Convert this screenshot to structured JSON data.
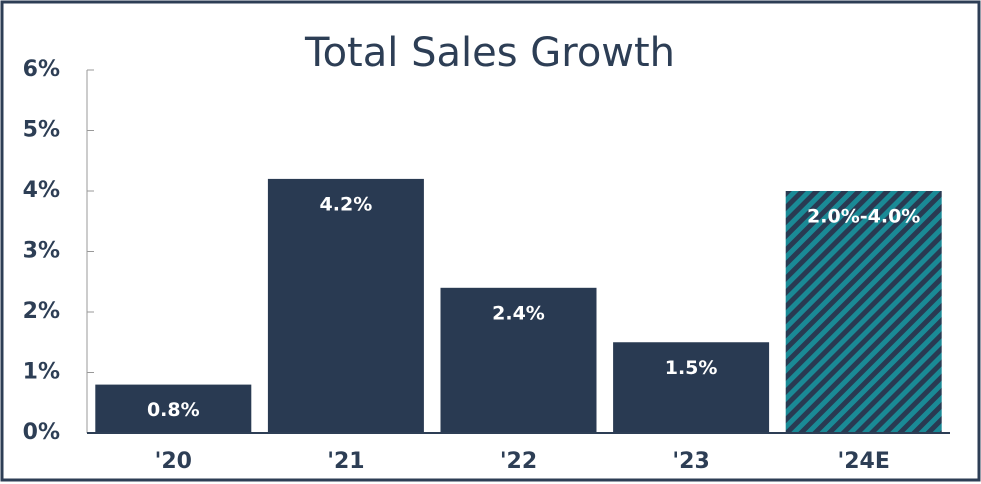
{
  "chart_data": {
    "type": "bar",
    "title": "Total Sales Growth",
    "categories": [
      "'20",
      "'21",
      "'22",
      "'23",
      "'24E"
    ],
    "values": [
      0.8,
      4.2,
      2.4,
      1.5,
      4.0
    ],
    "value_labels": [
      "0.8%",
      "4.2%",
      "2.4%",
      "1.5%",
      "2.0%-4.0%"
    ],
    "color": "#293a52",
    "hatched": [
      false,
      false,
      false,
      false,
      true
    ],
    "hatch_color": "#1a8a96",
    "ylim": [
      0,
      6
    ],
    "yticks": [
      {
        "value": 0,
        "label": "0%"
      },
      {
        "value": 1,
        "label": "1%"
      },
      {
        "value": 2,
        "label": "2%"
      },
      {
        "value": 3,
        "label": "3%"
      },
      {
        "value": 4,
        "label": "4%"
      },
      {
        "value": 5,
        "label": "5%"
      },
      {
        "value": 6,
        "label": "6%"
      }
    ],
    "grid": false
  }
}
